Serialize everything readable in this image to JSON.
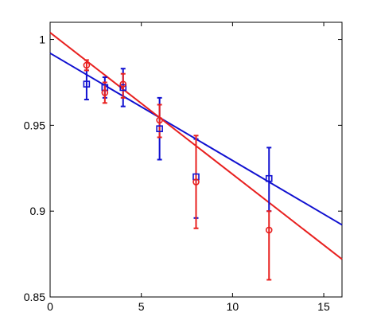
{
  "chart_data": {
    "type": "scatter",
    "title": "",
    "xlabel": "",
    "ylabel": "",
    "xlim": [
      0,
      16
    ],
    "ylim": [
      0.85,
      1.01
    ],
    "grid": false,
    "legend": "none",
    "x_ticks": [
      "0",
      "5",
      "10",
      "15"
    ],
    "x_tick_values": [
      0,
      5,
      10,
      15
    ],
    "y_ticks": [
      "0.85",
      "0.9",
      "0.95",
      "1"
    ],
    "y_tick_values": [
      0.85,
      0.9,
      0.95,
      1.0
    ],
    "series": [
      {
        "marker": "circle",
        "color": "#e8201f",
        "points": [
          {
            "x": 2,
            "y": 0.985,
            "lo": 0.982,
            "hi": 0.988
          },
          {
            "x": 3,
            "y": 0.969,
            "lo": 0.963,
            "hi": 0.975
          },
          {
            "x": 4,
            "y": 0.974,
            "lo": 0.966,
            "hi": 0.98
          },
          {
            "x": 6,
            "y": 0.953,
            "lo": 0.943,
            "hi": 0.962
          },
          {
            "x": 8,
            "y": 0.917,
            "lo": 0.89,
            "hi": 0.944
          },
          {
            "x": 12,
            "y": 0.889,
            "lo": 0.86,
            "hi": 0.9
          }
        ],
        "fit": [
          [
            0,
            1.004
          ],
          [
            16,
            0.872
          ]
        ]
      },
      {
        "marker": "square",
        "color": "#1010d0",
        "points": [
          {
            "x": 2,
            "y": 0.974,
            "lo": 0.965,
            "hi": 0.982
          },
          {
            "x": 3,
            "y": 0.972,
            "lo": 0.966,
            "hi": 0.978
          },
          {
            "x": 4,
            "y": 0.972,
            "lo": 0.961,
            "hi": 0.983
          },
          {
            "x": 6,
            "y": 0.948,
            "lo": 0.93,
            "hi": 0.966
          },
          {
            "x": 8,
            "y": 0.92,
            "lo": 0.896,
            "hi": 0.942
          },
          {
            "x": 12,
            "y": 0.919,
            "lo": 0.9,
            "hi": 0.937
          }
        ],
        "fit": [
          [
            0,
            0.992
          ],
          [
            16,
            0.892
          ]
        ]
      }
    ]
  }
}
